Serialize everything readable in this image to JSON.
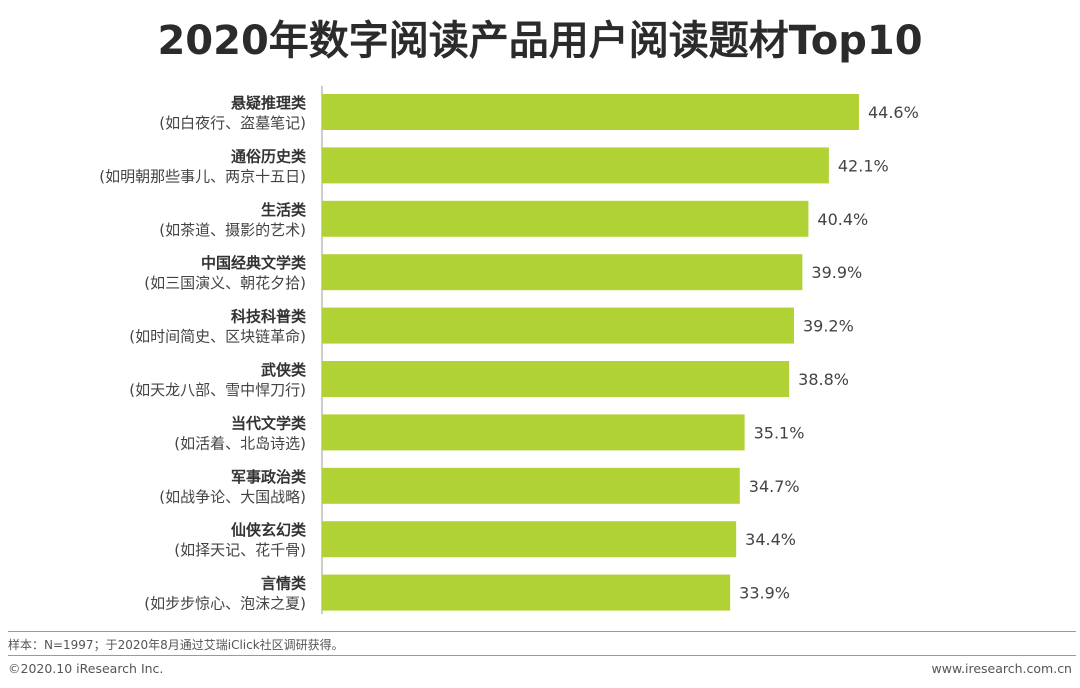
{
  "page": {
    "title": "2020年数字阅读产品用户阅读题材Top10",
    "note": "样本：N=1997；于2020年8月通过艾瑞iClick社区调研获得。",
    "copyright": "©2020.10 iResearch Inc.",
    "website": "www.iresearch.com.cn"
  },
  "colors": {
    "bar": "#b1d235",
    "text": "#333333"
  },
  "chart_data": {
    "type": "bar",
    "orientation": "horizontal",
    "title": "2020年数字阅读产品用户阅读题材Top10",
    "xlabel": "",
    "ylabel": "",
    "xlim": [
      0,
      46
    ],
    "value_suffix": "%",
    "grid": false,
    "categories": [
      "悬疑推理类",
      "通俗历史类",
      "生活类",
      "中国经典文学类",
      "科技科普类",
      "武侠类",
      "当代文学类",
      "军事政治类",
      "仙侠玄幻类",
      "言情类"
    ],
    "subcategories": [
      "(如白夜行、盗墓笔记)",
      "(如明朝那些事儿、两京十五日)",
      "(如茶道、摄影的艺术)",
      "(如三国演义、朝花夕拾)",
      "(如时间简史、区块链革命)",
      "(如天龙八部、雪中悍刀行)",
      "(如活着、北岛诗选)",
      "(如战争论、大国战略)",
      "(如择天记、花千骨)",
      "(如步步惊心、泡沫之夏)"
    ],
    "values": [
      44.6,
      42.1,
      40.4,
      39.9,
      39.2,
      38.8,
      35.1,
      34.7,
      34.4,
      33.9
    ]
  }
}
